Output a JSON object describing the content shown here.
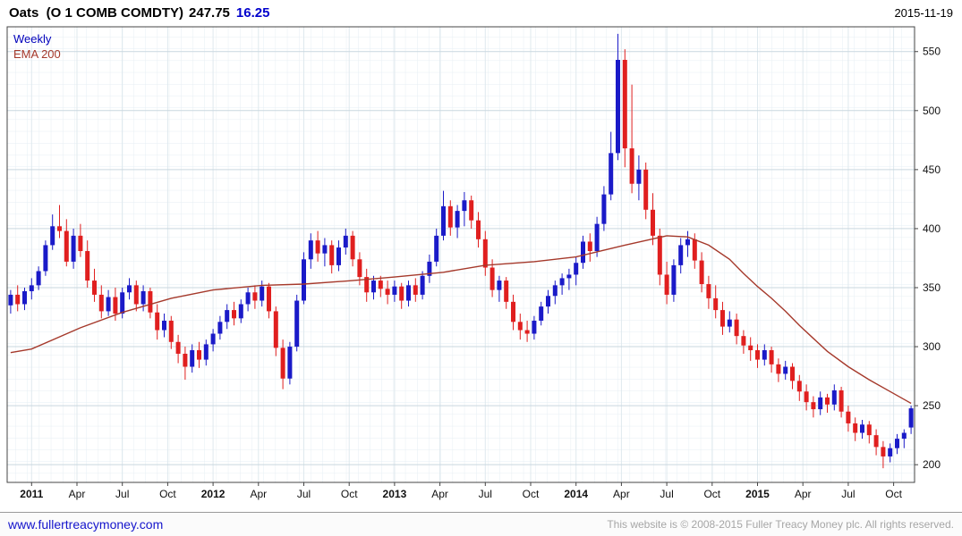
{
  "header": {
    "title": "Oats  (O 1 COMB COMDTY)",
    "last_price": "247.75",
    "change": "16.25",
    "date": "2015-11-19"
  },
  "legend": {
    "timeframe_label": "Weekly",
    "overlay_label": "EMA 200"
  },
  "footer": {
    "link": "www.fullertreacymoney.com",
    "copyright": "This website is © 2008-2015 Fuller Treacy Money plc. All rights reserved."
  },
  "colors": {
    "up": "#1a1ac8",
    "down": "#e01f1f",
    "ema": "#a5392b",
    "grid_minor": "#e6eef3",
    "grid_vertical": "#dfe9ee",
    "grid_major": "#c9d7df",
    "frame": "#444444",
    "axis_text": "#111111"
  },
  "chart_data": {
    "type": "candlestick",
    "title": "Oats (O 1 COMB COMDTY)",
    "timeframe": "Weekly",
    "overlay": "EMA 200",
    "last": 247.75,
    "change": 16.25,
    "grid": true,
    "legend_position": "top-left",
    "ylim": [
      185,
      571
    ],
    "y_ticks": [
      200,
      250,
      300,
      350,
      400,
      450,
      500,
      550
    ],
    "x_ticks": [
      {
        "i": 3,
        "label": "2011",
        "bold": true
      },
      {
        "i": 9.5,
        "label": "Apr",
        "bold": false
      },
      {
        "i": 16,
        "label": "Jul",
        "bold": false
      },
      {
        "i": 22.5,
        "label": "Oct",
        "bold": false
      },
      {
        "i": 29,
        "label": "2012",
        "bold": true
      },
      {
        "i": 35.5,
        "label": "Apr",
        "bold": false
      },
      {
        "i": 42,
        "label": "Jul",
        "bold": false
      },
      {
        "i": 48.5,
        "label": "Oct",
        "bold": false
      },
      {
        "i": 55,
        "label": "2013",
        "bold": true
      },
      {
        "i": 61.5,
        "label": "Apr",
        "bold": false
      },
      {
        "i": 68,
        "label": "Jul",
        "bold": false
      },
      {
        "i": 74.5,
        "label": "Oct",
        "bold": false
      },
      {
        "i": 81,
        "label": "2014",
        "bold": true
      },
      {
        "i": 87.5,
        "label": "Apr",
        "bold": false
      },
      {
        "i": 94,
        "label": "Jul",
        "bold": false
      },
      {
        "i": 100.5,
        "label": "Oct",
        "bold": false
      },
      {
        "i": 107,
        "label": "2015",
        "bold": true
      },
      {
        "i": 113.5,
        "label": "Apr",
        "bold": false
      },
      {
        "i": 120,
        "label": "Jul",
        "bold": false
      },
      {
        "i": 126.5,
        "label": "Oct",
        "bold": false
      }
    ],
    "candles": [
      [
        335,
        348,
        328,
        344
      ],
      [
        344,
        352,
        330,
        336
      ],
      [
        336,
        350,
        331,
        347
      ],
      [
        347,
        358,
        340,
        352
      ],
      [
        352,
        368,
        348,
        364
      ],
      [
        364,
        390,
        360,
        386
      ],
      [
        386,
        412,
        382,
        402
      ],
      [
        402,
        420,
        392,
        398
      ],
      [
        398,
        408,
        368,
        372
      ],
      [
        372,
        400,
        366,
        394
      ],
      [
        394,
        404,
        376,
        381
      ],
      [
        381,
        390,
        350,
        356
      ],
      [
        356,
        366,
        338,
        344
      ],
      [
        344,
        352,
        324,
        330
      ],
      [
        330,
        348,
        326,
        342
      ],
      [
        342,
        350,
        322,
        328
      ],
      [
        328,
        350,
        324,
        346
      ],
      [
        346,
        358,
        340,
        352
      ],
      [
        352,
        356,
        330,
        336
      ],
      [
        336,
        352,
        330,
        347
      ],
      [
        347,
        350,
        324,
        329
      ],
      [
        329,
        336,
        306,
        314
      ],
      [
        314,
        328,
        308,
        322
      ],
      [
        322,
        326,
        298,
        304
      ],
      [
        304,
        310,
        286,
        294
      ],
      [
        294,
        300,
        272,
        283
      ],
      [
        283,
        302,
        278,
        297
      ],
      [
        297,
        304,
        282,
        289
      ],
      [
        289,
        306,
        284,
        302
      ],
      [
        302,
        315,
        296,
        311
      ],
      [
        311,
        326,
        306,
        321
      ],
      [
        321,
        336,
        315,
        331
      ],
      [
        331,
        338,
        318,
        324
      ],
      [
        324,
        340,
        320,
        336
      ],
      [
        336,
        350,
        330,
        346
      ],
      [
        346,
        352,
        332,
        339
      ],
      [
        339,
        356,
        334,
        351
      ],
      [
        351,
        354,
        324,
        330
      ],
      [
        330,
        334,
        292,
        299
      ],
      [
        299,
        306,
        264,
        273
      ],
      [
        273,
        304,
        268,
        300
      ],
      [
        300,
        344,
        296,
        339
      ],
      [
        339,
        380,
        336,
        374
      ],
      [
        374,
        396,
        366,
        390
      ],
      [
        390,
        398,
        372,
        379
      ],
      [
        379,
        392,
        368,
        386
      ],
      [
        386,
        390,
        362,
        369
      ],
      [
        369,
        390,
        364,
        384
      ],
      [
        384,
        400,
        378,
        394
      ],
      [
        394,
        398,
        368,
        374
      ],
      [
        374,
        380,
        352,
        359
      ],
      [
        359,
        366,
        338,
        346
      ],
      [
        346,
        360,
        340,
        356
      ],
      [
        356,
        360,
        342,
        349
      ],
      [
        349,
        356,
        336,
        344
      ],
      [
        344,
        356,
        338,
        351
      ],
      [
        351,
        354,
        332,
        339
      ],
      [
        339,
        356,
        334,
        352
      ],
      [
        352,
        358,
        338,
        344
      ],
      [
        344,
        364,
        340,
        360
      ],
      [
        360,
        378,
        354,
        372
      ],
      [
        372,
        400,
        368,
        394
      ],
      [
        394,
        432,
        390,
        419
      ],
      [
        419,
        424,
        394,
        401
      ],
      [
        401,
        420,
        392,
        415
      ],
      [
        415,
        431,
        402,
        424
      ],
      [
        424,
        428,
        400,
        407
      ],
      [
        407,
        414,
        384,
        391
      ],
      [
        391,
        398,
        360,
        367
      ],
      [
        367,
        374,
        342,
        348
      ],
      [
        348,
        360,
        338,
        356
      ],
      [
        356,
        359,
        332,
        338
      ],
      [
        338,
        344,
        314,
        321
      ],
      [
        321,
        328,
        306,
        314
      ],
      [
        314,
        322,
        304,
        311
      ],
      [
        311,
        326,
        306,
        322
      ],
      [
        322,
        338,
        318,
        334
      ],
      [
        334,
        348,
        328,
        343
      ],
      [
        343,
        356,
        336,
        352
      ],
      [
        352,
        362,
        344,
        358
      ],
      [
        358,
        366,
        348,
        361
      ],
      [
        361,
        376,
        352,
        371
      ],
      [
        371,
        394,
        366,
        389
      ],
      [
        389,
        396,
        372,
        381
      ],
      [
        381,
        410,
        376,
        404
      ],
      [
        404,
        436,
        398,
        429
      ],
      [
        429,
        482,
        424,
        464
      ],
      [
        464,
        565,
        458,
        543
      ],
      [
        543,
        552,
        452,
        468
      ],
      [
        468,
        522,
        430,
        438
      ],
      [
        438,
        462,
        424,
        450
      ],
      [
        450,
        456,
        408,
        416
      ],
      [
        416,
        430,
        386,
        394
      ],
      [
        394,
        400,
        352,
        361
      ],
      [
        361,
        372,
        336,
        344
      ],
      [
        344,
        374,
        338,
        369
      ],
      [
        369,
        392,
        362,
        386
      ],
      [
        386,
        398,
        376,
        391
      ],
      [
        391,
        396,
        366,
        373
      ],
      [
        373,
        380,
        346,
        353
      ],
      [
        353,
        360,
        332,
        341
      ],
      [
        341,
        352,
        324,
        331
      ],
      [
        331,
        338,
        310,
        317
      ],
      [
        317,
        330,
        312,
        323
      ],
      [
        323,
        328,
        302,
        309
      ],
      [
        309,
        314,
        294,
        301
      ],
      [
        301,
        308,
        288,
        297
      ],
      [
        297,
        302,
        282,
        289
      ],
      [
        289,
        302,
        284,
        297
      ],
      [
        297,
        300,
        278,
        285
      ],
      [
        285,
        290,
        270,
        277
      ],
      [
        277,
        288,
        272,
        283
      ],
      [
        283,
        286,
        264,
        271
      ],
      [
        271,
        276,
        254,
        262
      ],
      [
        262,
        268,
        246,
        253
      ],
      [
        253,
        258,
        240,
        247
      ],
      [
        247,
        262,
        242,
        257
      ],
      [
        257,
        260,
        244,
        251
      ],
      [
        251,
        268,
        246,
        263
      ],
      [
        263,
        266,
        240,
        245
      ],
      [
        245,
        250,
        228,
        235
      ],
      [
        235,
        240,
        220,
        227
      ],
      [
        227,
        238,
        222,
        234
      ],
      [
        234,
        237,
        218,
        225
      ],
      [
        225,
        230,
        208,
        215
      ],
      [
        215,
        220,
        197,
        207
      ],
      [
        207,
        218,
        202,
        214
      ],
      [
        214,
        226,
        209,
        222
      ],
      [
        222,
        230,
        214,
        227
      ],
      [
        231.5,
        250,
        226,
        247.75
      ]
    ],
    "ema200": [
      [
        0,
        295
      ],
      [
        3,
        298
      ],
      [
        10,
        316
      ],
      [
        16,
        329
      ],
      [
        23,
        341
      ],
      [
        29,
        348
      ],
      [
        36,
        352
      ],
      [
        42,
        353
      ],
      [
        49,
        356
      ],
      [
        55,
        359
      ],
      [
        62,
        363
      ],
      [
        68,
        369
      ],
      [
        75,
        372
      ],
      [
        81,
        376
      ],
      [
        88,
        386
      ],
      [
        94,
        394
      ],
      [
        97,
        393
      ],
      [
        100,
        386
      ],
      [
        103,
        374
      ],
      [
        105,
        362
      ],
      [
        107,
        351
      ],
      [
        109,
        341
      ],
      [
        111,
        330
      ],
      [
        113,
        318
      ],
      [
        115,
        307
      ],
      [
        117,
        296
      ],
      [
        120,
        283
      ],
      [
        123,
        272
      ],
      [
        126,
        262
      ],
      [
        129,
        252
      ]
    ]
  }
}
